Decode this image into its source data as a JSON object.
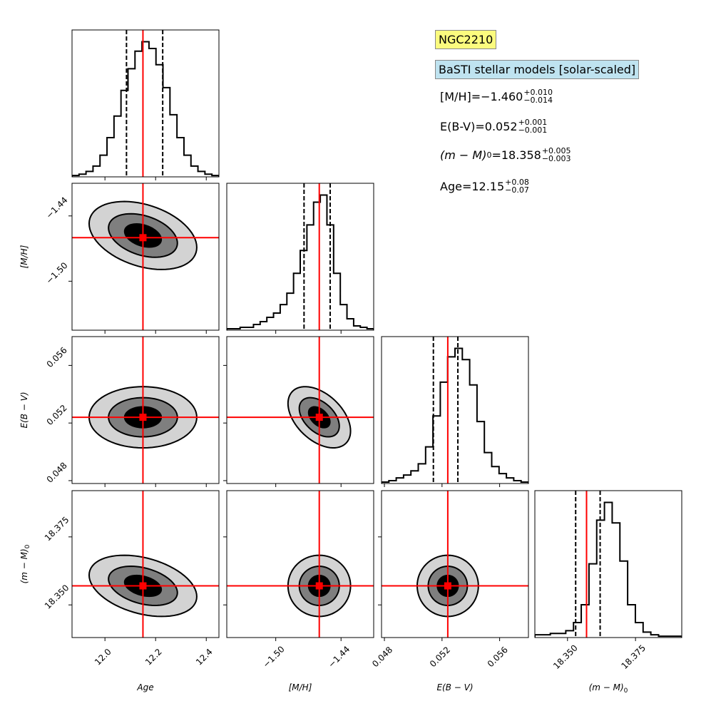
{
  "legend": {
    "cluster": "NGC2210",
    "models": "BaSTI stellar models [solar-scaled]",
    "results": [
      {
        "label": "[M/H]=",
        "value": "−1.460",
        "plus": "+0.010",
        "minus": "−0.014"
      },
      {
        "label": "E(B-V)=",
        "value": "0.052",
        "plus": "+0.001",
        "minus": "−0.001"
      },
      {
        "label_math": "(m − M)",
        "label_sub": "0",
        "label_eq": "=",
        "value": "18.358",
        "plus": "+0.005",
        "minus": "−0.003"
      },
      {
        "label": "Age=",
        "value": "12.15",
        "plus": "+0.08",
        "minus": "−0.07"
      }
    ]
  },
  "chart_data": {
    "type": "corner",
    "parameters": [
      {
        "key": "age",
        "label": "Age",
        "range": [
          11.87,
          12.45
        ],
        "ticks": [
          12.0,
          12.2,
          12.4
        ],
        "tick_labels": [
          "12.0",
          "12.2",
          "12.4"
        ],
        "best": 12.15,
        "q_low": 12.085,
        "q_high": 12.228,
        "sigma": 0.07,
        "hist": [
          1,
          2,
          4,
          8,
          16,
          29,
          45,
          64,
          80,
          93,
          100,
          95,
          83,
          66,
          46,
          29,
          16,
          8,
          4,
          2,
          1
        ]
      },
      {
        "key": "mh",
        "label": "[M/H]",
        "range": [
          -1.545,
          -1.41
        ],
        "ticks": [
          -1.5,
          -1.44
        ],
        "tick_labels": [
          "−1.50",
          "−1.44"
        ],
        "best": -1.46,
        "q_low": -1.474,
        "q_high": -1.45,
        "sigma": 0.012,
        "hist": [
          1,
          1,
          2,
          2,
          4,
          6,
          9,
          12,
          18,
          26,
          40,
          56,
          74,
          90,
          95,
          74,
          40,
          18,
          8,
          3,
          2,
          1
        ]
      },
      {
        "key": "ebv",
        "label": "E(B − V)",
        "range": [
          0.0478,
          0.058
        ],
        "ticks": [
          0.048,
          0.052,
          0.056
        ],
        "tick_labels": [
          "0.048",
          "0.052",
          "0.056"
        ],
        "best": 0.0524,
        "q_low": 0.0514,
        "q_high": 0.0531,
        "sigma": 0.0009,
        "hist": [
          1,
          2,
          4,
          6,
          9,
          14,
          26,
          48,
          72,
          90,
          96,
          88,
          70,
          44,
          22,
          12,
          7,
          4,
          2,
          1
        ]
      },
      {
        "key": "dm",
        "label": "(m − M)",
        "label_sub": "0",
        "range": [
          18.338,
          18.392
        ],
        "ticks": [
          18.35,
          18.375
        ],
        "tick_labels": [
          "18.350",
          "18.375"
        ],
        "best": 18.357,
        "q_low": 18.353,
        "q_high": 18.362,
        "sigma": 0.004,
        "hist": [
          2,
          2,
          3,
          3,
          5,
          11,
          24,
          54,
          86,
          99,
          84,
          56,
          24,
          11,
          4,
          2,
          1,
          1,
          1
        ]
      }
    ],
    "pairs": [
      {
        "x": "age",
        "y": "mh",
        "cx": 12.15,
        "cy": -1.458,
        "sx": 0.085,
        "sy": 0.0125,
        "rho": -0.35
      },
      {
        "x": "age",
        "y": "ebv",
        "cx": 12.15,
        "cy": 0.0524,
        "sx": 0.085,
        "sy": 0.00085,
        "rho": 0.0
      },
      {
        "x": "mh",
        "y": "ebv",
        "cx": -1.46,
        "cy": 0.0524,
        "sx": 0.0115,
        "sy": 0.00085,
        "rho": -0.45
      },
      {
        "x": "age",
        "y": "dm",
        "cx": 12.15,
        "cy": 18.357,
        "sx": 0.085,
        "sy": 0.0045,
        "rho": -0.35
      },
      {
        "x": "mh",
        "y": "dm",
        "cx": -1.46,
        "cy": 18.357,
        "sx": 0.0115,
        "sy": 0.0045,
        "rho": 0.0
      },
      {
        "x": "ebv",
        "y": "dm",
        "cx": 0.0524,
        "cy": 18.357,
        "sx": 0.00085,
        "sy": 0.0045,
        "rho": 0.0
      }
    ],
    "colors": {
      "best_fit": "#ff0000",
      "level_outer": "#d3d3d3",
      "level_mid": "#7f7f7f",
      "level_inner": "#000000",
      "hist_line": "#000000"
    },
    "grid": false
  }
}
